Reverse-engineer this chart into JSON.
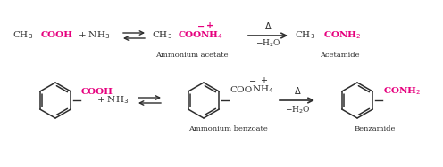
{
  "bg_color": "#ffffff",
  "black": "#2d2d2d",
  "magenta": "#e6007e",
  "fig_width": 4.96,
  "fig_height": 1.88,
  "dpi": 100,
  "label1": "Ammonium acetate",
  "label2": "Acetamide",
  "label3": "Ammonium benzoate",
  "label4": "Benzamide"
}
